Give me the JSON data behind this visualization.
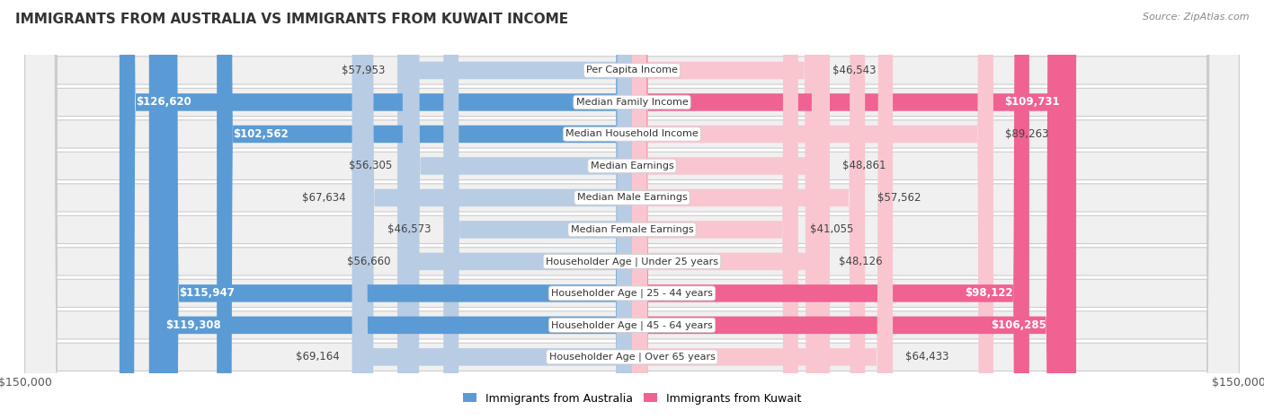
{
  "title": "IMMIGRANTS FROM AUSTRALIA VS IMMIGRANTS FROM KUWAIT INCOME",
  "source": "Source: ZipAtlas.com",
  "categories": [
    "Per Capita Income",
    "Median Family Income",
    "Median Household Income",
    "Median Earnings",
    "Median Male Earnings",
    "Median Female Earnings",
    "Householder Age | Under 25 years",
    "Householder Age | 25 - 44 years",
    "Householder Age | 45 - 64 years",
    "Householder Age | Over 65 years"
  ],
  "australia_values": [
    57953,
    126620,
    102562,
    56305,
    67634,
    46573,
    56660,
    115947,
    119308,
    69164
  ],
  "kuwait_values": [
    46543,
    109731,
    89263,
    48861,
    57562,
    41055,
    48126,
    98122,
    106285,
    64433
  ],
  "australia_color_light": "#b8cce4",
  "australia_color_dark": "#5b9bd5",
  "kuwait_color_light": "#f9c6d0",
  "kuwait_color_dark": "#f06292",
  "bar_height": 0.55,
  "max_value": 150000,
  "background_color": "#ffffff",
  "row_bg_color": "#f0f0f0",
  "legend_australia": "Immigrants from Australia",
  "legend_kuwait": "Immigrants from Kuwait",
  "inside_label_threshold": 90000,
  "label_fontsize": 8.5,
  "title_fontsize": 11,
  "source_fontsize": 8,
  "legend_fontsize": 9,
  "category_fontsize": 8
}
